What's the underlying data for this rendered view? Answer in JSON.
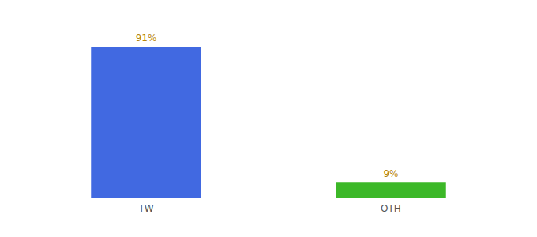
{
  "chart_data": {
    "type": "bar",
    "categories": [
      "TW",
      "OTH"
    ],
    "values": [
      91,
      9
    ],
    "value_labels": [
      "91%",
      "9%"
    ],
    "colors": [
      "#4169E1",
      "#3CB828"
    ],
    "ylim": [
      0,
      105
    ],
    "grid": false,
    "data_labels": true,
    "tick_labels": "x"
  }
}
